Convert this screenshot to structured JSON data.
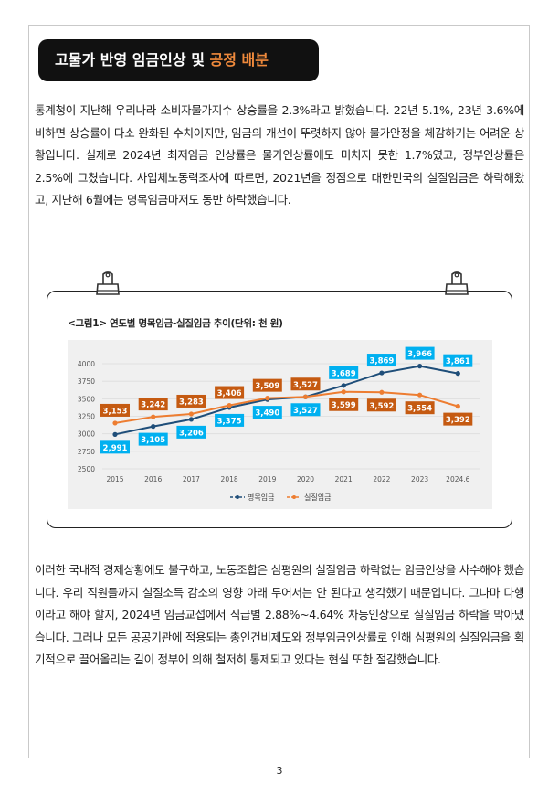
{
  "title": {
    "main": "고물가 반영 임금인상 및 ",
    "accent": "공정 배분"
  },
  "paragraph1": " 통계청이 지난해 우리나라 소비자물가지수 상승률을 2.3%라고 밝혔습니다. 22년 5.1%, 23년 3.6%에 비하면 상승률이 다소 완화된 수치이지만, 임금의 개선이 뚜렷하지 않아 물가안정을 체감하기는 어려운 상황입니다. 실제로 2024년 최저임금 인상률은 물가인상률에도 미치지 못한 1.7%였고, 정부인상률은 2.5%에 그쳤습니다. 사업체노동력조사에 따르면, 2021년을 정점으로 대한민국의 실질임금은 하락해왔고, 지난해 6월에는 명목임금마저도 동반 하락했습니다.",
  "paragraph2": " 이러한 국내적 경제상황에도 불구하고, 노동조합은 심평원의 실질임금 하락없는 임금인상을 사수해야 했습니다. 우리 직원들까지 실질소득 감소의 영향 아래 두어서는 안 된다고 생각했기 때문입니다. 그나마 다행이라고 해야 할지, 2024년 임금교섭에서 직급별 2.88%~4.64% 차등인상으로 실질임금 하락을 막아냈습니다. 그러나 모든 공공기관에 적용되는 총인건비제도와 정부임금인상률로 인해  심평원의 실질임금을 획기적으로 끌어올리는 길이 정부에 의해 철저히 통제되고 있다는 현실 또한 절감했습니다.",
  "page_number": "3",
  "chart_data": {
    "type": "line",
    "title": "<그림1> 연도별 명목임금-실질임금 추이(단위: 천 원)",
    "categories": [
      "2015",
      "2016",
      "2017",
      "2018",
      "2019",
      "2020",
      "2021",
      "2022",
      "2023",
      "2024.6"
    ],
    "yticks": [
      "4000",
      "3750",
      "3500",
      "3250",
      "3000",
      "2750",
      "2500"
    ],
    "ylim": [
      2500,
      4000
    ],
    "grid": true,
    "legend": "bottom",
    "series": [
      {
        "name": "명목임금",
        "color": "#1f4e79",
        "label_bg": "#00b0f0",
        "values": [
          2991,
          3105,
          3206,
          3375,
          3490,
          3527,
          3689,
          3869,
          3966,
          3861
        ],
        "labels": [
          "2,991",
          "3,105",
          "3,206",
          "3,375",
          "3,490",
          "3,527",
          "3,689",
          "3,869",
          "3,966",
          "3,861"
        ]
      },
      {
        "name": "실질임금",
        "color": "#ed7d31",
        "label_bg": "#c55a11",
        "values": [
          3153,
          3242,
          3283,
          3406,
          3509,
          3527,
          3599,
          3592,
          3554,
          3392
        ],
        "labels": [
          "3,153",
          "3,242",
          "3,283",
          "3,406",
          "3,509",
          "3,527",
          "3,599",
          "3,592",
          "3,554",
          "3,392"
        ]
      }
    ]
  }
}
